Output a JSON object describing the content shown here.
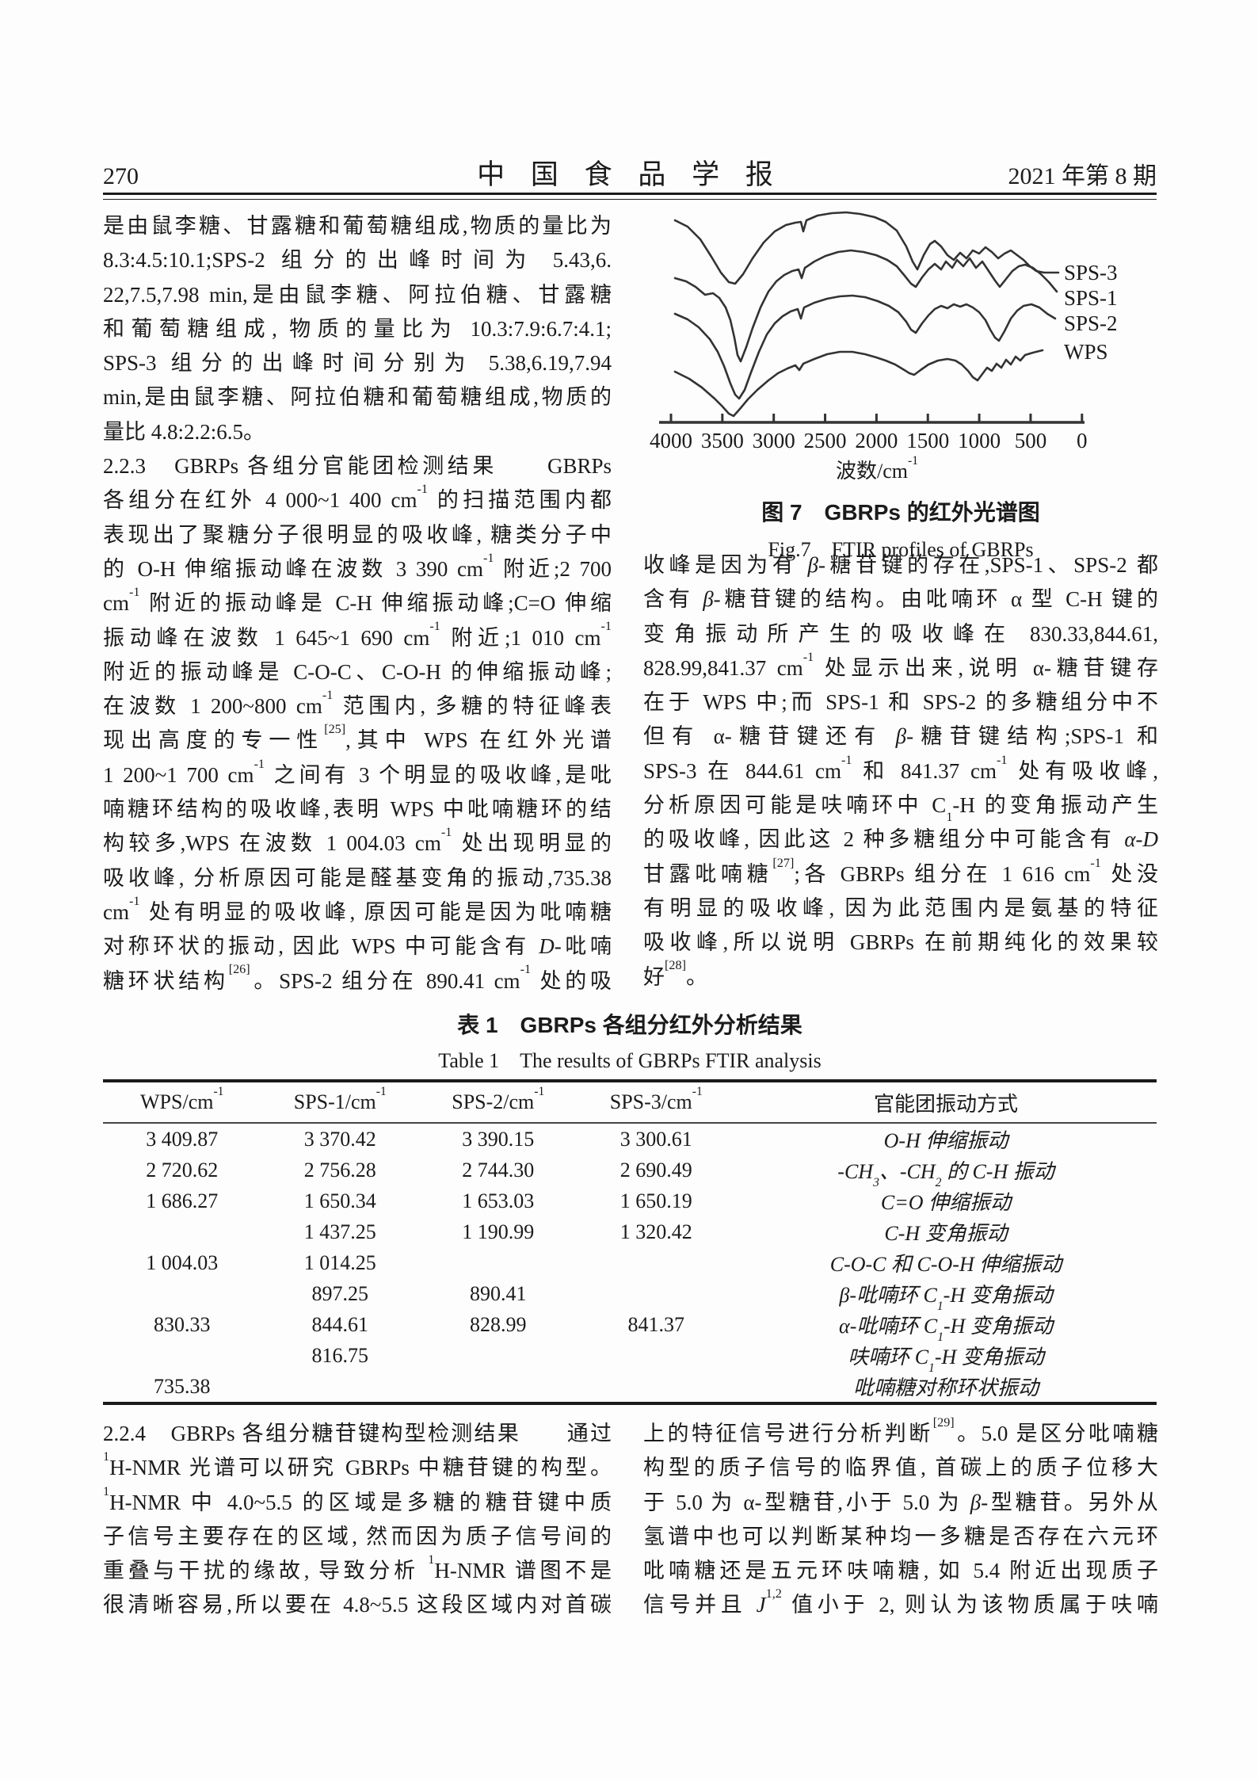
{
  "header": {
    "page_number": "270",
    "journal_title": "中 国 食 品 学 报",
    "issue": "2021 年第 8 期"
  },
  "left_column": {
    "lines": [
      {
        "t": "是由鼠李糖、甘露糖和葡萄糖组成,物质的量比为",
        "full": true
      },
      {
        "t": "8.3:4.5:10.1;SPS-2 组分的出峰时间为 5.43,6.",
        "full": true
      },
      {
        "t": "22,7.5,7.98 min,是由鼠李糖、阿拉伯糖、甘露糖",
        "full": true
      },
      {
        "t": "和葡萄糖组成, 物质的量比为 10.3:7.9:6.7:4.1;",
        "full": true
      },
      {
        "t": "SPS-3 组分的出峰时间分别为 5.38,6.19,7.94",
        "full": true
      },
      {
        "t": "min,是由鼠李糖、阿拉伯糖和葡萄糖组成,物质的",
        "full": true
      },
      {
        "t": "量比 4.8:2.2:6.5。",
        "full": false
      },
      {
        "t": "2.2.3　GBRPs 各组分官能团检测结果　　GBRPs",
        "full": true
      },
      {
        "t": "各组分在红外 4 000~1 400 cm<sup>-1</sup> 的扫描范围内都",
        "full": true
      },
      {
        "t": "表现出了聚糖分子很明显的吸收峰, 糖类分子中",
        "full": true
      },
      {
        "t": "的 O-H 伸缩振动峰在波数 3 390 cm<sup>-1</sup> 附近;2 700",
        "full": true
      },
      {
        "t": "cm<sup>-1</sup> 附近的振动峰是 C-H 伸缩振动峰;C=O 伸缩",
        "full": true
      },
      {
        "t": "振动峰在波数 1 645~1 690 cm<sup>-1</sup> 附近;1 010 cm<sup>-1</sup>",
        "full": true
      },
      {
        "t": "附近的振动峰是 C-O-C、C-O-H 的伸缩振动峰;",
        "full": true
      },
      {
        "t": "在波数 1 200~800 cm<sup>-1</sup> 范围内, 多糖的特征峰表",
        "full": true
      },
      {
        "t": "现出高度的专一性<sup>[25]</sup>,其中 WPS 在红外光谱",
        "full": true
      },
      {
        "t": "1 200~1 700 cm<sup>-1</sup> 之间有 3 个明显的吸收峰,是吡",
        "full": true
      },
      {
        "t": "喃糖环结构的吸收峰,表明 WPS 中吡喃糖环的结",
        "full": true
      },
      {
        "t": "构较多,WPS 在波数 1 004.03 cm<sup>-1</sup> 处出现明显的",
        "full": true
      },
      {
        "t": "吸收峰, 分析原因可能是醛基变角的振动,735.38",
        "full": true
      },
      {
        "t": "cm<sup>-1</sup> 处有明显的吸收峰, 原因可能是因为吡喃糖",
        "full": true
      },
      {
        "t": "对称环状的振动, 因此 WPS 中可能含有 <i>D</i>-吡喃",
        "full": true
      },
      {
        "t": "糖环状结构<sup>[26]</sup>。SPS-2 组分在 890.41 cm<sup>-1</sup> 处的吸",
        "full": true
      }
    ]
  },
  "right_column": {
    "lines": [
      {
        "t": "收峰是因为有 <i>β</i>-糖苷键的存在,SPS-1、SPS-2 都",
        "full": true
      },
      {
        "t": "含有 <i>β</i>-糖苷键的结构。由吡喃环 α 型 C-H 键的",
        "full": true
      },
      {
        "t": "变角振动所产生的吸收峰在 830.33,844.61,",
        "full": true
      },
      {
        "t": "828.99,841.37 cm<sup>-1</sup> 处显示出来,说明 α-糖苷键存",
        "full": true
      },
      {
        "t": "在于 WPS 中;而 SPS-1 和 SPS-2 的多糖组分中不",
        "full": true
      },
      {
        "t": "但有 α-糖苷键还有 <i>β</i>-糖苷键结构;SPS-1 和",
        "full": true
      },
      {
        "t": "SPS-3 在 844.61 cm<sup>-1</sup> 和 841.37 cm<sup>-1</sup> 处有吸收峰,",
        "full": true
      },
      {
        "t": "分析原因可能是呋喃环中 C<sub>1</sub>-H 的变角振动产生",
        "full": true
      },
      {
        "t": "的吸收峰, 因此这 2 种多糖组分中可能含有 <i>α</i>-<i>D</i>",
        "full": true
      },
      {
        "t": "甘露吡喃糖<sup>[27]</sup>;各 GBRPs 组分在 1 616 cm<sup>-1</sup> 处没",
        "full": true
      },
      {
        "t": "有明显的吸收峰, 因为此范围内是氨基的特征",
        "full": true
      },
      {
        "t": "吸收峰,所以说明 GBRPs 在前期纯化的效果较",
        "full": true
      },
      {
        "t": "好<sup>[28]</sup>。",
        "full": false
      }
    ]
  },
  "figure": {
    "type": "line",
    "caption_zh": "图 7　GBRPs 的红外光谱图",
    "caption_en": "Fig.7　FTIR profiles of GBRPs",
    "xlabel_html": "波数/cm<sup>-1</sup>",
    "x_ticks": [
      "4000",
      "3500",
      "3000",
      "2500",
      "2000",
      "1500",
      "1000",
      "500",
      "0"
    ],
    "x_range": [
      4000,
      0
    ],
    "ink": "#333333",
    "series": [
      {
        "name": "SPS-3",
        "points": [
          [
            40,
            22
          ],
          [
            56,
            30
          ],
          [
            72,
            46
          ],
          [
            86,
            68
          ],
          [
            98,
            88
          ],
          [
            108,
            100
          ],
          [
            116,
            102
          ],
          [
            126,
            90
          ],
          [
            138,
            70
          ],
          [
            152,
            50
          ],
          [
            166,
            36
          ],
          [
            180,
            28
          ],
          [
            192,
            25
          ],
          [
            199,
            24
          ],
          [
            202,
            36
          ],
          [
            206,
            22
          ],
          [
            220,
            16
          ],
          [
            238,
            13
          ],
          [
            256,
            12
          ],
          [
            274,
            14
          ],
          [
            292,
            18
          ],
          [
            306,
            24
          ],
          [
            320,
            35
          ],
          [
            332,
            55
          ],
          [
            340,
            74
          ],
          [
            346,
            84
          ],
          [
            354,
            66
          ],
          [
            362,
            52
          ],
          [
            368,
            48
          ],
          [
            376,
            55
          ],
          [
            384,
            66
          ],
          [
            392,
            72
          ],
          [
            400,
            63
          ],
          [
            408,
            70
          ],
          [
            416,
            60
          ],
          [
            424,
            64
          ],
          [
            432,
            56
          ],
          [
            440,
            62
          ],
          [
            448,
            70
          ],
          [
            456,
            64
          ],
          [
            464,
            60
          ],
          [
            472,
            66
          ],
          [
            480,
            72
          ],
          [
            488,
            80
          ],
          [
            496,
            86
          ],
          [
            506,
            88
          ],
          [
            524,
            88
          ]
        ]
      },
      {
        "name": "SPS-1",
        "points": [
          [
            40,
            95
          ],
          [
            54,
            99
          ],
          [
            66,
            106
          ],
          [
            78,
            116
          ],
          [
            88,
            114
          ],
          [
            96,
            120
          ],
          [
            104,
            132
          ],
          [
            110,
            148
          ],
          [
            115,
            170
          ],
          [
            119,
            192
          ],
          [
            123,
            200
          ],
          [
            130,
            182
          ],
          [
            138,
            158
          ],
          [
            148,
            132
          ],
          [
            158,
            112
          ],
          [
            168,
            99
          ],
          [
            178,
            91
          ],
          [
            188,
            86
          ],
          [
            196,
            84
          ],
          [
            200,
            95
          ],
          [
            204,
            82
          ],
          [
            216,
            74
          ],
          [
            230,
            67
          ],
          [
            246,
            62
          ],
          [
            262,
            60
          ],
          [
            278,
            62
          ],
          [
            294,
            66
          ],
          [
            308,
            72
          ],
          [
            320,
            80
          ],
          [
            330,
            92
          ],
          [
            338,
            102
          ],
          [
            344,
            106
          ],
          [
            352,
            94
          ],
          [
            360,
            84
          ],
          [
            368,
            77
          ],
          [
            376,
            84
          ],
          [
            382,
            74
          ],
          [
            390,
            82
          ],
          [
            396,
            72
          ],
          [
            404,
            80
          ],
          [
            412,
            70
          ],
          [
            420,
            82
          ],
          [
            428,
            74
          ],
          [
            436,
            86
          ],
          [
            444,
            98
          ],
          [
            450,
            106
          ],
          [
            458,
            96
          ],
          [
            466,
            86
          ],
          [
            474,
            80
          ],
          [
            482,
            78
          ],
          [
            492,
            82
          ],
          [
            502,
            90
          ],
          [
            512,
            100
          ],
          [
            522,
            112
          ]
        ]
      },
      {
        "name": "SPS-2",
        "points": [
          [
            40,
            140
          ],
          [
            56,
            147
          ],
          [
            70,
            157
          ],
          [
            84,
            172
          ],
          [
            94,
            188
          ],
          [
            102,
            206
          ],
          [
            110,
            228
          ],
          [
            116,
            242
          ],
          [
            121,
            247
          ],
          [
            128,
            236
          ],
          [
            136,
            214
          ],
          [
            146,
            188
          ],
          [
            156,
            166
          ],
          [
            166,
            152
          ],
          [
            176,
            143
          ],
          [
            186,
            137
          ],
          [
            195,
            134
          ],
          [
            199,
            146
          ],
          [
            203,
            132
          ],
          [
            216,
            126
          ],
          [
            232,
            121
          ],
          [
            248,
            118
          ],
          [
            264,
            117
          ],
          [
            280,
            119
          ],
          [
            296,
            124
          ],
          [
            310,
            130
          ],
          [
            322,
            138
          ],
          [
            332,
            150
          ],
          [
            338,
            160
          ],
          [
            344,
            164
          ],
          [
            352,
            152
          ],
          [
            360,
            142
          ],
          [
            368,
            134
          ],
          [
            376,
            130
          ],
          [
            384,
            133
          ],
          [
            392,
            128
          ],
          [
            400,
            131
          ],
          [
            408,
            128
          ],
          [
            416,
            132
          ],
          [
            424,
            138
          ],
          [
            432,
            148
          ],
          [
            438,
            160
          ],
          [
            444,
            170
          ],
          [
            449,
            174
          ],
          [
            456,
            162
          ],
          [
            464,
            146
          ],
          [
            472,
            136
          ],
          [
            480,
            130
          ],
          [
            490,
            128
          ],
          [
            500,
            132
          ],
          [
            510,
            140
          ],
          [
            520,
            146
          ]
        ]
      },
      {
        "name": "WPS",
        "points": [
          [
            40,
            213
          ],
          [
            58,
            222
          ],
          [
            74,
            233
          ],
          [
            90,
            247
          ],
          [
            100,
            257
          ],
          [
            108,
            266
          ],
          [
            114,
            269
          ],
          [
            122,
            260
          ],
          [
            132,
            248
          ],
          [
            144,
            236
          ],
          [
            158,
            224
          ],
          [
            170,
            215
          ],
          [
            182,
            209
          ],
          [
            192,
            205
          ],
          [
            197,
            211
          ],
          [
            202,
            203
          ],
          [
            216,
            197
          ],
          [
            232,
            191
          ],
          [
            248,
            188
          ],
          [
            264,
            188
          ],
          [
            280,
            191
          ],
          [
            294,
            195
          ],
          [
            306,
            199
          ],
          [
            318,
            204
          ],
          [
            328,
            210
          ],
          [
            336,
            215
          ],
          [
            342,
            217
          ],
          [
            350,
            211
          ],
          [
            360,
            204
          ],
          [
            372,
            199
          ],
          [
            384,
            197
          ],
          [
            394,
            199
          ],
          [
            402,
            204
          ],
          [
            410,
            212
          ],
          [
            416,
            220
          ],
          [
            422,
            224
          ],
          [
            428,
            216
          ],
          [
            434,
            208
          ],
          [
            440,
            212
          ],
          [
            446,
            203
          ],
          [
            452,
            208
          ],
          [
            458,
            198
          ],
          [
            464,
            204
          ],
          [
            470,
            194
          ],
          [
            476,
            199
          ],
          [
            482,
            192
          ],
          [
            492,
            189
          ],
          [
            504,
            186
          ]
        ]
      }
    ]
  },
  "table": {
    "title_zh": "表 1　GBRPs 各组分红外分析结果",
    "title_en": "Table 1　The results of GBRPs FTIR analysis",
    "headers": [
      "WPS/cm<sup>-1</sup>",
      "SPS-1/cm<sup>-1</sup>",
      "SPS-2/cm<sup>-1</sup>",
      "SPS-3/cm<sup>-1</sup>",
      "官能团振动方式"
    ],
    "rows": [
      [
        "3 409.87",
        "3 370.42",
        "3 390.15",
        "3 300.61",
        "O-H 伸缩振动"
      ],
      [
        "2 720.62",
        "2 756.28",
        "2 744.30",
        "2 690.49",
        "-CH<sub>3</sub>、-CH<sub>2</sub> 的 C-H 振动"
      ],
      [
        "1 686.27",
        "1 650.34",
        "1 653.03",
        "1 650.19",
        "C=O 伸缩振动"
      ],
      [
        "",
        "1 437.25",
        "1 190.99",
        "1 320.42",
        "C-H 变角振动"
      ],
      [
        "1 004.03",
        "1 014.25",
        "",
        "",
        "C-O-C 和 C-O-H 伸缩振动"
      ],
      [
        "",
        "897.25",
        "890.41",
        "",
        "<i>β</i>-吡喃环 C<sub>1</sub>-H 变角振动"
      ],
      [
        "830.33",
        "844.61",
        "828.99",
        "841.37",
        "<i>α</i>-吡喃环 C<sub>1</sub>-H 变角振动"
      ],
      [
        "",
        "816.75",
        "",
        "",
        "呋喃环 C<sub>1</sub>-H 变角振动"
      ],
      [
        "735.38",
        "",
        "",
        "",
        "吡喃糖对称环状振动"
      ]
    ]
  },
  "bottom_left": {
    "lines": [
      {
        "t": "2.2.4　GBRPs 各组分糖苷键构型检测结果　　通过",
        "full": true
      },
      {
        "t": "<sup>1</sup>H-NMR 光谱可以研究 GBRPs 中糖苷键的构型。",
        "full": true
      },
      {
        "t": "<sup>1</sup>H-NMR 中 4.0~5.5 的区域是多糖的糖苷键中质",
        "full": true
      },
      {
        "t": "子信号主要存在的区域, 然而因为质子信号间的",
        "full": true
      },
      {
        "t": "重叠与干扰的缘故, 导致分析 <sup>1</sup>H-NMR 谱图不是",
        "full": true
      },
      {
        "t": "很清晰容易,所以要在 4.8~5.5 这段区域内对首碳",
        "full": true
      }
    ]
  },
  "bottom_right": {
    "lines": [
      {
        "t": "上的特征信号进行分析判断<sup>[29]</sup>。5.0 是区分吡喃糖",
        "full": true
      },
      {
        "t": "构型的质子信号的临界值, 首碳上的质子位移大",
        "full": true
      },
      {
        "t": "于 5.0 为 α-型糖苷,小于 5.0 为 <i>β</i>-型糖苷。另外从",
        "full": true
      },
      {
        "t": "氢谱中也可以判断某种均一多糖是否存在六元环",
        "full": true
      },
      {
        "t": "吡喃糖还是五元环呋喃糖, 如 5.4 附近出现质子",
        "full": true
      },
      {
        "t": "信号并且 <i>J</i><sup>1,2</sup> 值小于 2, 则认为该物质属于呋喃",
        "full": true
      }
    ]
  }
}
